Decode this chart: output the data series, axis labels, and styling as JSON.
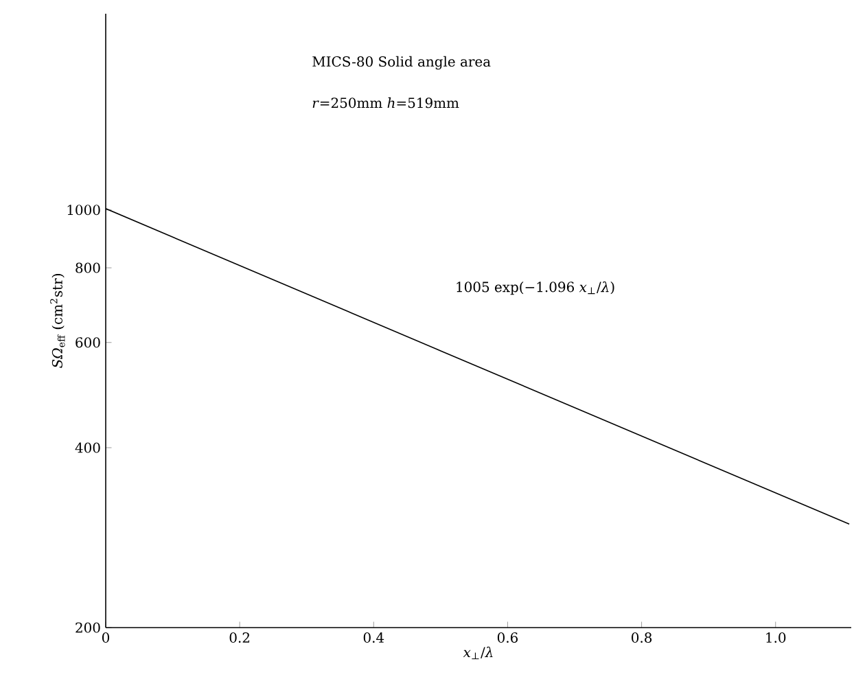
{
  "chart_data": {
    "type": "line",
    "log": "y",
    "xlabel": "*x*$_{⊥}$/*λ*",
    "ylabel": "*SΩ*$_{eff}$ (cm$^{2}$str)",
    "annotations": [
      "MICS-80  Solid angle area",
      "*r*=250mm   *h*=519mm",
      "1005 exp(−1.096 *x*$_{⊥}$/*λ*)"
    ],
    "series": [
      {
        "color": "#000000",
        "x": [
          0,
          0.5,
          1.11
        ],
        "values": [
          1005,
          581,
          298
        ]
      }
    ],
    "xlim": [
      0,
      1.113
    ],
    "ylim": [
      200,
      2130
    ],
    "xticks": [
      0,
      0.2,
      0.4,
      0.6,
      0.8,
      {
        "value": 1,
        "label": "1.0"
      }
    ],
    "yticks": [
      200,
      400,
      600,
      800,
      1000
    ],
    "grid": false,
    "marker": "none",
    "line_style": "solid"
  }
}
